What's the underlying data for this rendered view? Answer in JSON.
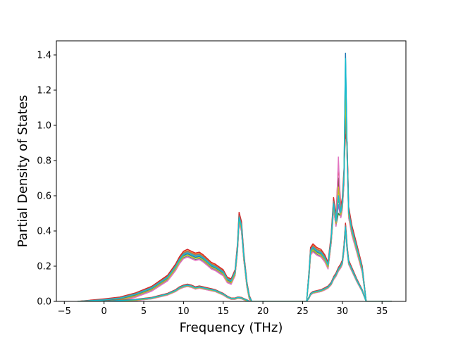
{
  "chart_data": {
    "type": "line",
    "title": "",
    "xlabel": "Frequency (THz)",
    "ylabel": "Partial Density of States",
    "xlim": [
      -6.0,
      38.0
    ],
    "ylim": [
      0.0,
      1.48
    ],
    "xticks": [
      -5,
      0,
      5,
      10,
      15,
      20,
      25,
      30,
      35
    ],
    "xtick_labels": [
      "−5",
      "0",
      "5",
      "10",
      "15",
      "20",
      "25",
      "30",
      "35"
    ],
    "yticks": [
      0.0,
      0.2,
      0.4,
      0.6,
      0.8,
      1.0,
      1.2,
      1.4
    ],
    "ytick_labels": [
      "0.0",
      "0.2",
      "0.4",
      "0.6",
      "0.8",
      "1.0",
      "1.2",
      "1.4"
    ],
    "grid": false,
    "legend": "none",
    "series_colors": [
      "#1f77b4",
      "#ff7f0e",
      "#2ca02c",
      "#d62728",
      "#9467bd",
      "#8c564b",
      "#e377c2",
      "#7f7f7f",
      "#bcbd22",
      "#17becf"
    ],
    "series": [
      {
        "group": "upper",
        "x": [
          -3.3,
          0.0,
          2.0,
          4.0,
          6.0,
          8.0,
          9.0,
          9.5,
          10.0,
          10.5,
          11.0,
          11.5,
          12.0,
          12.5,
          13.0,
          13.5,
          14.0,
          14.5,
          15.0,
          15.5,
          16.0,
          16.5,
          16.8,
          17.0,
          17.3,
          17.6,
          18.0,
          18.3,
          18.6,
          19.0,
          25.5,
          25.8,
          26.0,
          26.3,
          26.8,
          27.3,
          27.8,
          28.2,
          28.6,
          28.9,
          29.2,
          29.5,
          29.8,
          30.0,
          30.2,
          30.4,
          30.6,
          30.8,
          31.2,
          31.8,
          32.5,
          33.0,
          36.2
        ],
        "y": [
          0.0,
          0.002,
          0.012,
          0.035,
          0.07,
          0.13,
          0.19,
          0.23,
          0.26,
          0.27,
          0.26,
          0.25,
          0.255,
          0.24,
          0.22,
          0.2,
          0.19,
          0.175,
          0.16,
          0.12,
          0.11,
          0.16,
          0.3,
          0.47,
          0.42,
          0.25,
          0.09,
          0.02,
          0.0,
          0.0,
          0.0,
          0.15,
          0.28,
          0.3,
          0.28,
          0.27,
          0.24,
          0.2,
          0.35,
          0.55,
          0.45,
          0.62,
          0.5,
          0.55,
          0.7,
          1.35,
          0.85,
          0.5,
          0.4,
          0.3,
          0.18,
          0.0,
          0.0
        ]
      },
      {
        "group": "lower",
        "x": [
          -3.3,
          0.0,
          2.0,
          4.0,
          6.0,
          8.0,
          9.0,
          9.5,
          10.0,
          10.5,
          11.0,
          11.5,
          12.0,
          12.5,
          13.0,
          13.5,
          14.0,
          14.5,
          15.0,
          15.5,
          16.0,
          16.5,
          16.8,
          17.0,
          17.3,
          17.6,
          18.0,
          18.3,
          18.6,
          19.0,
          25.5,
          25.8,
          26.0,
          26.3,
          26.8,
          27.3,
          27.8,
          28.2,
          28.6,
          28.9,
          29.2,
          29.5,
          29.8,
          30.0,
          30.2,
          30.4,
          30.6,
          30.8,
          31.2,
          31.8,
          32.5,
          33.0,
          36.2
        ],
        "y": [
          0.0,
          0.0,
          0.003,
          0.008,
          0.018,
          0.04,
          0.06,
          0.075,
          0.085,
          0.09,
          0.085,
          0.075,
          0.08,
          0.075,
          0.07,
          0.065,
          0.06,
          0.05,
          0.04,
          0.025,
          0.015,
          0.015,
          0.02,
          0.02,
          0.018,
          0.012,
          0.005,
          0.0,
          0.0,
          0.0,
          0.0,
          0.02,
          0.04,
          0.05,
          0.055,
          0.06,
          0.07,
          0.08,
          0.1,
          0.13,
          0.15,
          0.18,
          0.2,
          0.22,
          0.3,
          0.42,
          0.3,
          0.22,
          0.18,
          0.12,
          0.06,
          0.0,
          0.0
        ]
      }
    ],
    "variations": [
      {
        "dy": 0.0,
        "scale": 1.0,
        "peak30": 1.41,
        "peak29": 0.6
      },
      {
        "dy": 0.01,
        "scale": 1.03,
        "peak30": 1.0,
        "peak29": 0.65
      },
      {
        "dy": -0.008,
        "scale": 0.98,
        "peak30": 1.17,
        "peak29": 0.5
      },
      {
        "dy": 0.012,
        "scale": 1.05,
        "peak30": 0.95,
        "peak29": 0.78
      },
      {
        "dy": -0.005,
        "scale": 0.96,
        "peak30": 1.3,
        "peak29": 0.55
      },
      {
        "dy": 0.004,
        "scale": 1.01,
        "peak30": 1.1,
        "peak29": 0.7
      },
      {
        "dy": -0.01,
        "scale": 0.97,
        "peak30": 1.25,
        "peak29": 0.82
      },
      {
        "dy": 0.008,
        "scale": 1.02,
        "peak30": 1.05,
        "peak29": 0.58
      },
      {
        "dy": -0.003,
        "scale": 0.99,
        "peak30": 1.2,
        "peak29": 0.65
      },
      {
        "dy": 0.006,
        "scale": 1.0,
        "peak30": 1.38,
        "peak29": 0.6
      }
    ]
  }
}
